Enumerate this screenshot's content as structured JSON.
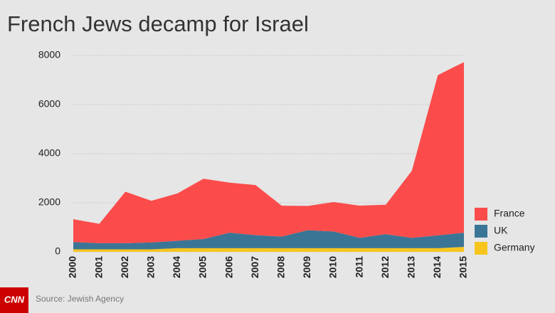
{
  "chart_data": {
    "type": "stacked-area",
    "title": "French Jews decamp for Israel",
    "source": "Source: Jewish Agency",
    "logo": "CNN",
    "categories": [
      "2000",
      "2001",
      "2002",
      "2003",
      "2004",
      "2005",
      "2006",
      "2007",
      "2008",
      "2009",
      "2010",
      "2011",
      "2012",
      "2013",
      "2014",
      "2015"
    ],
    "series": [
      {
        "name": "France",
        "color": "#fb4c4b",
        "values": [
          930,
          790,
          2100,
          1700,
          1930,
          2460,
          2040,
          2040,
          1260,
          990,
          1200,
          1310,
          1200,
          2730,
          6530,
          6950
        ]
      },
      {
        "name": "UK",
        "color": "#3b7596",
        "values": [
          300,
          250,
          250,
          280,
          300,
          370,
          630,
          530,
          470,
          730,
          680,
          420,
          570,
          420,
          520,
          580
        ]
      },
      {
        "name": "Germany",
        "color": "#f7c51e",
        "values": [
          100,
          100,
          100,
          100,
          150,
          150,
          150,
          150,
          150,
          150,
          150,
          150,
          150,
          150,
          150,
          200
        ]
      }
    ],
    "ylim": [
      0,
      8000
    ],
    "yticks": [
      0,
      2000,
      4000,
      6000,
      8000
    ],
    "grid": true
  }
}
